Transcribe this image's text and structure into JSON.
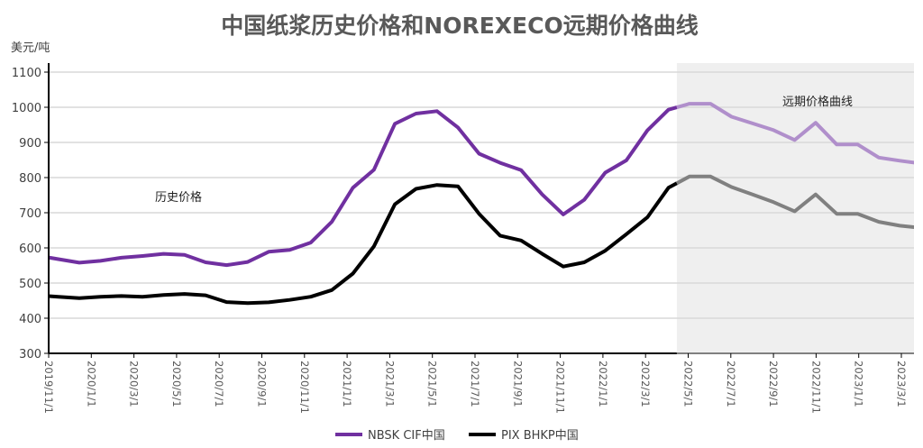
{
  "chart_data": {
    "type": "line",
    "title": "中国纸浆历史价格和NOREXECO远期价格曲线",
    "ylabel": "美元/吨",
    "xlabel": "",
    "ylim": [
      300,
      1100
    ],
    "yticks": [
      300,
      400,
      500,
      600,
      700,
      800,
      900,
      1000,
      1100
    ],
    "xtick_labels": [
      "2019/11/1",
      "2020/1/1",
      "2020/3/1",
      "2020/5/1",
      "2020/7/1",
      "2020/9/1",
      "2020/11/1",
      "2021/1/1",
      "2021/3/1",
      "2021/5/1",
      "2021/7/1",
      "2021/9/1",
      "2021/11/1",
      "2022/1/1",
      "2022/3/1",
      "2022/5/1",
      "2022/7/1",
      "2022/9/1",
      "2022/11/1",
      "2023/1/1",
      "2023/3/1"
    ],
    "x": [
      "2019/11",
      "2019/12",
      "2020/1",
      "2020/2",
      "2020/3",
      "2020/4",
      "2020/5",
      "2020/6",
      "2020/7",
      "2020/8",
      "2020/9",
      "2020/10",
      "2020/11",
      "2020/12",
      "2021/1",
      "2021/2",
      "2021/3",
      "2021/4",
      "2021/5",
      "2021/6",
      "2021/7",
      "2021/8",
      "2021/9",
      "2021/10",
      "2021/11",
      "2021/12",
      "2022/1",
      "2022/2",
      "2022/3",
      "2022/4",
      "2022/5",
      "2022/6",
      "2022/7",
      "2022/8",
      "2022/9",
      "2022/10",
      "2022/11",
      "2022/12",
      "2023/1",
      "2023/2",
      "2023/3",
      "2023/4"
    ],
    "forecast_start_index": 29.4,
    "series": [
      {
        "name": "NBSK CIF中国",
        "color": "#7030a0",
        "forecast_color": "#b08fcb",
        "values": [
          568,
          558,
          563,
          572,
          577,
          583,
          580,
          559,
          551,
          560,
          589,
          594,
          615,
          674,
          771,
          822,
          953,
          982,
          989,
          942,
          868,
          842,
          821,
          752,
          695,
          737,
          814,
          849,
          934,
          993,
          1010,
          1010,
          973,
          954,
          935,
          907,
          956,
          894,
          894,
          857,
          848,
          840
        ]
      },
      {
        "name": "PIX BHKP中国",
        "color": "#000000",
        "forecast_color": "#808080",
        "values": [
          461,
          457,
          461,
          463,
          461,
          466,
          469,
          465,
          446,
          443,
          445,
          452,
          461,
          480,
          527,
          604,
          724,
          768,
          779,
          775,
          697,
          635,
          621,
          583,
          547,
          559,
          592,
          639,
          687,
          771,
          803,
          803,
          773,
          752,
          730,
          704,
          752,
          697,
          697,
          674,
          663,
          657
        ]
      }
    ],
    "annotations": {
      "history": "历史价格",
      "forecast": "远期价格曲线"
    },
    "grid": true,
    "legend_position": "bottom"
  }
}
